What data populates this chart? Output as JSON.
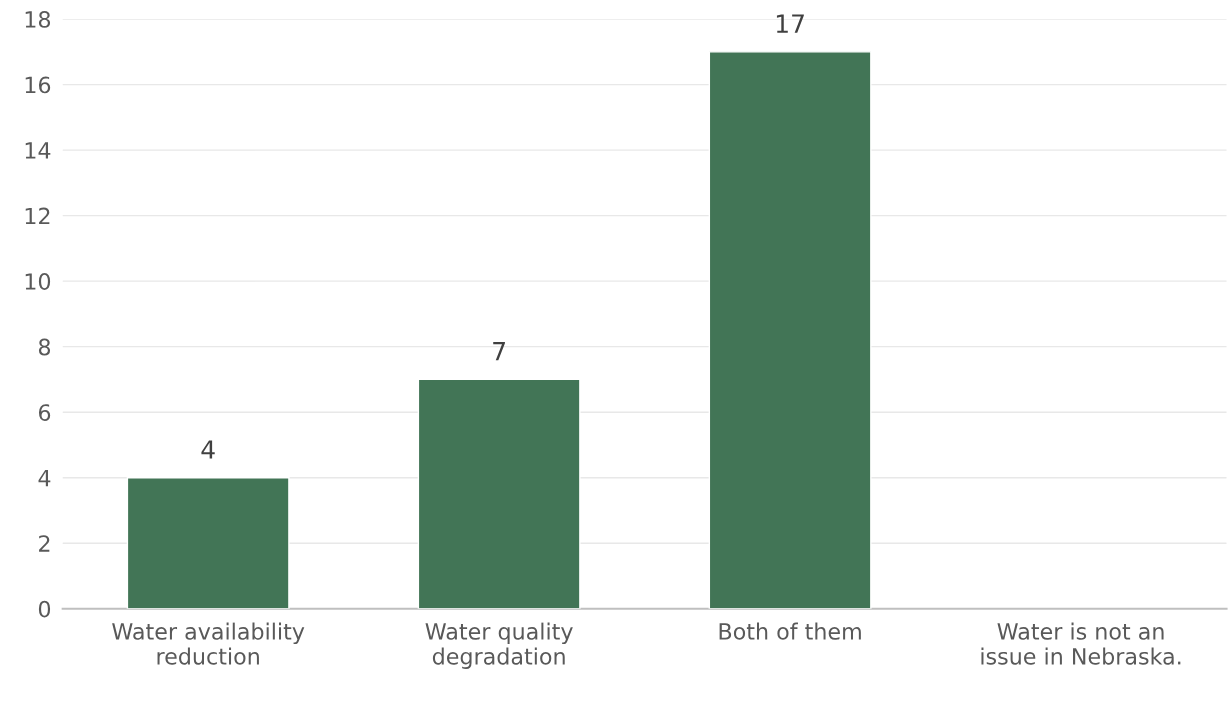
{
  "chart_data": {
    "type": "bar",
    "categories": [
      "Water availability reduction",
      "Water quality degradation",
      "Both of them",
      "Water is not an issue in Nebraska."
    ],
    "values": [
      4,
      7,
      17,
      null
    ],
    "value_labels": [
      "4",
      "7",
      "17",
      null
    ],
    "color": "#427556",
    "ylim": [
      0,
      18
    ],
    "yticks": [
      0,
      2,
      4,
      6,
      8,
      10,
      12,
      14,
      16,
      18
    ],
    "grid": "y"
  }
}
